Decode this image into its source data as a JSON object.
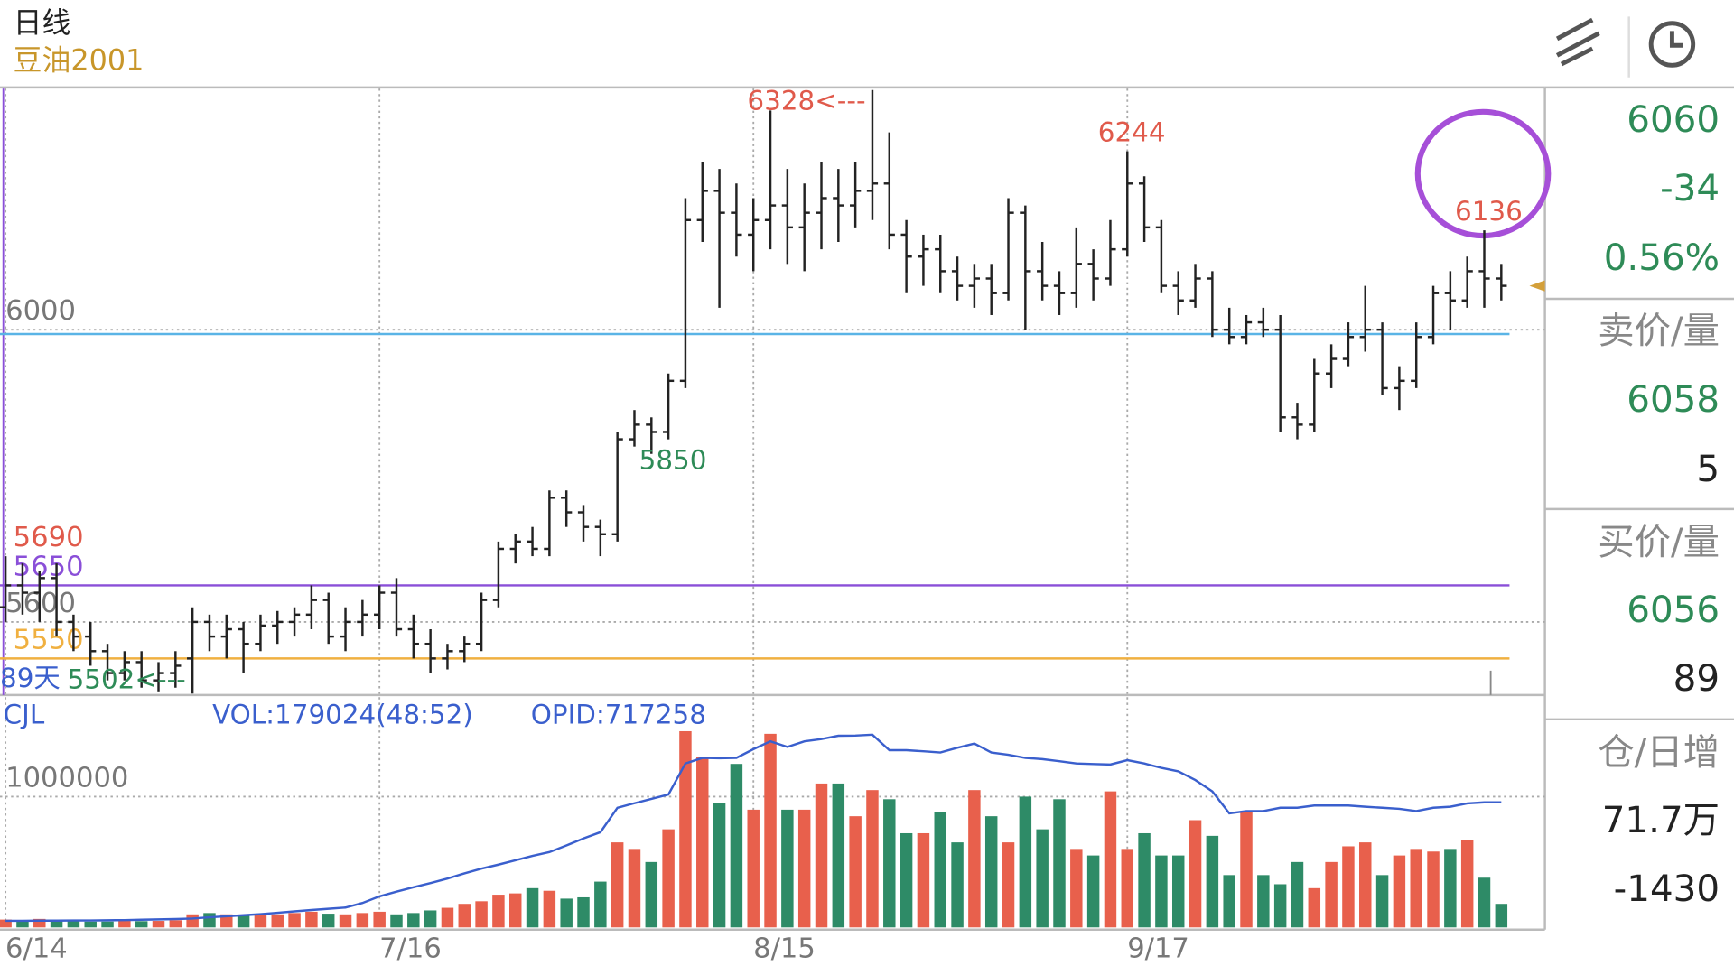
{
  "header": {
    "period": "日线",
    "symbol": "豆油2001",
    "days": "89天"
  },
  "quote": {
    "last": 6060,
    "change": -34,
    "change_pct": "0.56%",
    "ask_title": "卖价/量",
    "ask": 6058,
    "ask_vol": 5,
    "bid_title": "买价/量",
    "bid": 6056,
    "bid_vol": 89,
    "oi_title": "仓/日增",
    "oi": "71.7万",
    "oi_change": -1430
  },
  "chart_data": [
    {
      "type": "ohlc",
      "color": "#222222",
      "categories": [
        "6/14",
        null,
        null,
        null,
        null,
        null,
        null,
        null,
        null,
        null,
        null,
        null,
        null,
        null,
        null,
        null,
        null,
        null,
        null,
        null,
        null,
        null,
        "7/16",
        null,
        null,
        null,
        null,
        null,
        null,
        null,
        null,
        null,
        null,
        null,
        null,
        null,
        null,
        null,
        null,
        null,
        null,
        null,
        null,
        null,
        "8/15",
        null,
        null,
        null,
        null,
        null,
        null,
        null,
        null,
        null,
        null,
        null,
        null,
        null,
        null,
        null,
        null,
        null,
        null,
        null,
        null,
        null,
        "9/17",
        null,
        null,
        null,
        null,
        null,
        null,
        null,
        null,
        null,
        null,
        null,
        null,
        null,
        null,
        null,
        null,
        null,
        null,
        null,
        null,
        null,
        null
      ],
      "ohlc": [
        [
          5620,
          5690,
          5600,
          5650
        ],
        [
          5650,
          5680,
          5610,
          5640
        ],
        [
          5640,
          5670,
          5600,
          5660
        ],
        [
          5660,
          5680,
          5580,
          5600
        ],
        [
          5600,
          5610,
          5560,
          5580
        ],
        [
          5580,
          5600,
          5540,
          5560
        ],
        [
          5560,
          5570,
          5520,
          5530
        ],
        [
          5530,
          5560,
          5520,
          5545
        ],
        [
          5545,
          5560,
          5510,
          5520
        ],
        [
          5520,
          5545,
          5505,
          5530
        ],
        [
          5530,
          5560,
          5510,
          5540
        ],
        [
          5550,
          5620,
          5502,
          5600
        ],
        [
          5600,
          5610,
          5560,
          5580
        ],
        [
          5580,
          5610,
          5550,
          5590
        ],
        [
          5590,
          5600,
          5530,
          5570
        ],
        [
          5570,
          5610,
          5560,
          5595
        ],
        [
          5595,
          5615,
          5570,
          5600
        ],
        [
          5600,
          5620,
          5580,
          5610
        ],
        [
          5610,
          5650,
          5590,
          5630
        ],
        [
          5630,
          5640,
          5570,
          5580
        ],
        [
          5580,
          5620,
          5560,
          5600
        ],
        [
          5600,
          5630,
          5580,
          5610
        ],
        [
          5610,
          5650,
          5590,
          5640
        ],
        [
          5640,
          5660,
          5580,
          5590
        ],
        [
          5590,
          5610,
          5550,
          5570
        ],
        [
          5570,
          5590,
          5530,
          5550
        ],
        [
          5550,
          5570,
          5535,
          5560
        ],
        [
          5560,
          5580,
          5545,
          5570
        ],
        [
          5570,
          5640,
          5560,
          5630
        ],
        [
          5630,
          5710,
          5620,
          5700
        ],
        [
          5700,
          5720,
          5680,
          5710
        ],
        [
          5710,
          5730,
          5690,
          5700
        ],
        [
          5700,
          5780,
          5690,
          5770
        ],
        [
          5770,
          5780,
          5730,
          5750
        ],
        [
          5750,
          5760,
          5710,
          5730
        ],
        [
          5730,
          5740,
          5690,
          5720
        ],
        [
          5720,
          5860,
          5710,
          5850
        ],
        [
          5850,
          5890,
          5840,
          5870
        ],
        [
          5870,
          5880,
          5830,
          5860
        ],
        [
          5860,
          5940,
          5850,
          5930
        ],
        [
          5930,
          6180,
          5920,
          6150
        ],
        [
          6150,
          6230,
          6120,
          6190
        ],
        [
          6190,
          6220,
          6030,
          6160
        ],
        [
          6160,
          6200,
          6100,
          6130
        ],
        [
          6130,
          6180,
          6080,
          6150
        ],
        [
          6150,
          6300,
          6110,
          6170
        ],
        [
          6170,
          6220,
          6090,
          6140
        ],
        [
          6140,
          6200,
          6080,
          6160
        ],
        [
          6160,
          6230,
          6110,
          6180
        ],
        [
          6180,
          6220,
          6120,
          6170
        ],
        [
          6170,
          6230,
          6140,
          6190
        ],
        [
          6190,
          6328,
          6150,
          6200
        ],
        [
          6200,
          6270,
          6110,
          6130
        ],
        [
          6130,
          6150,
          6050,
          6100
        ],
        [
          6100,
          6130,
          6060,
          6110
        ],
        [
          6110,
          6130,
          6050,
          6080
        ],
        [
          6080,
          6100,
          6040,
          6060
        ],
        [
          6060,
          6090,
          6030,
          6070
        ],
        [
          6070,
          6090,
          6020,
          6050
        ],
        [
          6050,
          6180,
          6040,
          6160
        ],
        [
          6160,
          6170,
          6000,
          6080
        ],
        [
          6080,
          6120,
          6040,
          6060
        ],
        [
          6060,
          6080,
          6020,
          6050
        ],
        [
          6050,
          6140,
          6030,
          6090
        ],
        [
          6090,
          6110,
          6040,
          6070
        ],
        [
          6070,
          6150,
          6060,
          6110
        ],
        [
          6110,
          6244,
          6100,
          6200
        ],
        [
          6200,
          6210,
          6120,
          6140
        ],
        [
          6140,
          6150,
          6050,
          6060
        ],
        [
          6060,
          6080,
          6020,
          6040
        ],
        [
          6040,
          6090,
          6030,
          6070
        ],
        [
          6070,
          6080,
          5990,
          6000
        ],
        [
          6000,
          6030,
          5980,
          5990
        ],
        [
          5990,
          6020,
          5980,
          6010
        ],
        [
          6010,
          6030,
          5990,
          6000
        ],
        [
          6000,
          6020,
          5860,
          5880
        ],
        [
          5880,
          5900,
          5850,
          5870
        ],
        [
          5870,
          5960,
          5860,
          5940
        ],
        [
          5940,
          5980,
          5920,
          5960
        ],
        [
          5960,
          6010,
          5950,
          5990
        ],
        [
          5990,
          6060,
          5970,
          6000
        ],
        [
          6000,
          6010,
          5910,
          5920
        ],
        [
          5920,
          5950,
          5890,
          5930
        ],
        [
          5930,
          6010,
          5920,
          5990
        ],
        [
          5990,
          6060,
          5980,
          6050
        ],
        [
          6050,
          6080,
          6000,
          6040
        ],
        [
          6040,
          6100,
          6030,
          6080
        ],
        [
          6080,
          6136,
          6030,
          6070
        ],
        [
          6070,
          6090,
          6040,
          6060
        ]
      ],
      "ylim": [
        5500,
        6330
      ],
      "yticks": [
        5600,
        6000
      ],
      "grid": true,
      "levels": [
        {
          "value": 5994,
          "color": "#5ab4e6"
        },
        {
          "value": 5650,
          "label": "5650",
          "color": "#8a4fd8"
        },
        {
          "value": 5550,
          "label": "5550",
          "color": "#f0b040"
        },
        {
          "value": 5690,
          "label": "5690",
          "color": "#e05a4b",
          "line": false
        }
      ],
      "annotations": [
        {
          "label": "6328<---",
          "value": 6328,
          "color": "#e05a4b"
        },
        {
          "label": "6244",
          "value": 6244,
          "color": "#e05a4b"
        },
        {
          "label": "6136",
          "value": 6136,
          "color": "#e05a4b"
        },
        {
          "label": "5850",
          "value": 5850,
          "color": "#2e8b57"
        },
        {
          "label": "5502<---",
          "value": 5502,
          "color": "#2e8b57"
        }
      ],
      "marker_color": "#d4a03a"
    },
    {
      "type": "bar",
      "title": "CJL",
      "up_color": "#e8604c",
      "down_color": "#2e8b67",
      "series": [
        {
          "name": "VOL:179024(48:52)",
          "values": [
            60000,
            55000,
            65000,
            50000,
            50000,
            45000,
            45000,
            50000,
            48000,
            50000,
            55000,
            100000,
            110000,
            100000,
            95000,
            105000,
            100000,
            110000,
            120000,
            105000,
            100000,
            110000,
            120000,
            100000,
            110000,
            130000,
            150000,
            180000,
            200000,
            250000,
            260000,
            300000,
            280000,
            220000,
            230000,
            350000,
            650000,
            600000,
            500000,
            750000,
            1500000,
            1300000,
            950000,
            1250000,
            900000,
            1480000,
            900000,
            900000,
            1100000,
            1100000,
            850000,
            1050000,
            980000,
            720000,
            720000,
            880000,
            650000,
            1050000,
            850000,
            650000,
            1000000,
            750000,
            980000,
            600000,
            550000,
            1040000,
            600000,
            720000,
            550000,
            550000,
            820000,
            700000,
            400000,
            880000,
            400000,
            330000,
            500000,
            300000,
            500000,
            620000,
            650000,
            400000,
            550000,
            600000,
            580000,
            600000,
            670000,
            380000,
            180000
          ]
        },
        {
          "name": "OPID:717258",
          "type": "line",
          "axis": "y2",
          "color": "#3a5fcd",
          "values": [
            38000,
            38000,
            39000,
            39000,
            40000,
            40000,
            41000,
            42000,
            44000,
            46000,
            48000,
            51000,
            58000,
            64000,
            70000,
            76000,
            84000,
            92000,
            100000,
            107000,
            114000,
            140000,
            178000,
            205000,
            230000,
            254000,
            280000,
            310000,
            337000,
            360000,
            385000,
            410000,
            432000,
            470000,
            510000,
            546000,
            686000,
            712000,
            737000,
            762000,
            940000,
            972000,
            970000,
            972000,
            1022000,
            1067000,
            1035000,
            1067000,
            1080000,
            1099000,
            1100000,
            1105000,
            1016000,
            1016000,
            1010000,
            1003000,
            1030000,
            1054000,
            1003000,
            990000,
            972000,
            965000,
            953000,
            940000,
            937000,
            934000,
            959000,
            940000,
            915000,
            895000,
            845000,
            780000,
            654000,
            667000,
            667000,
            686000,
            686000,
            699000,
            699000,
            699000,
            692000,
            686000,
            680000,
            667000,
            686000,
            692000,
            711000,
            717000,
            717258
          ]
        }
      ],
      "ylim": [
        0,
        1760000
      ],
      "yticks": [
        1000000
      ],
      "y2lim": [
        0,
        1320000
      ],
      "grid": true
    }
  ]
}
